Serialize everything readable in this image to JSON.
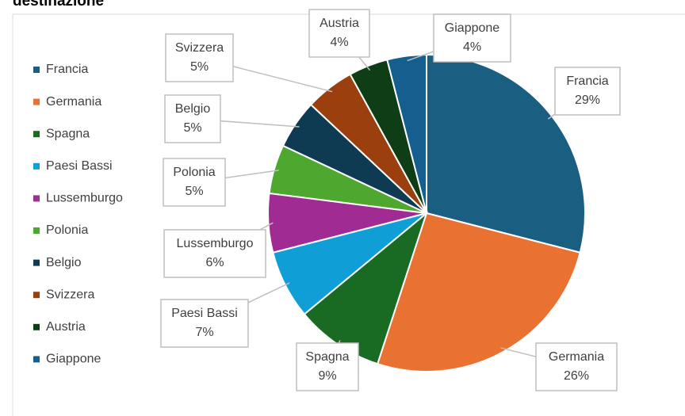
{
  "chart_data": {
    "type": "pie",
    "title": "destinazione",
    "categories": [
      "Francia",
      "Germania",
      "Spagna",
      "Paesi Bassi",
      "Lussemburgo",
      "Polonia",
      "Belgio",
      "Svizzera",
      "Austria",
      "Giappone"
    ],
    "values": [
      29,
      26,
      9,
      7,
      6,
      5,
      5,
      5,
      4,
      4
    ],
    "value_labels": [
      "29%",
      "26%",
      "9%",
      "7%",
      "6%",
      "5%",
      "5%",
      "5%",
      "4%",
      "4%"
    ],
    "colors": [
      "#1a5e82",
      "#e97132",
      "#196b24",
      "#0f9ed5",
      "#a02b93",
      "#4ea72e",
      "#0e3a52",
      "#9c3f0e",
      "#0f3d15",
      "#155f8e"
    ],
    "legend": "left"
  }
}
